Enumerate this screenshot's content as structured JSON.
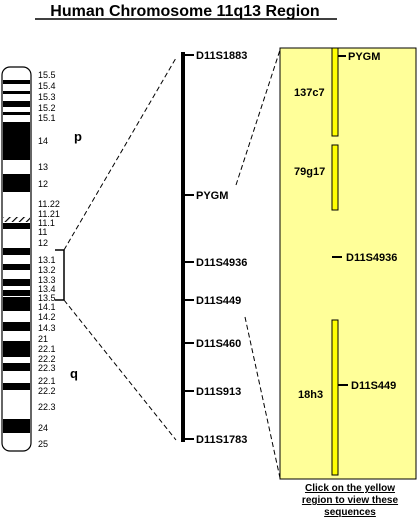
{
  "title": "Human Chromosome 11q13 Region",
  "arm_labels": {
    "p": "p",
    "q": "q"
  },
  "band_labels": [
    "15.5",
    "15.4",
    "15.3",
    "15.2",
    "15.1",
    "14",
    "13",
    "12",
    "11.22",
    "11.21",
    "11.1",
    "11",
    "12",
    "13.1",
    "13.2",
    "13.3",
    "13.4",
    "13.5",
    "14.1",
    "14.2",
    "14.3",
    "21",
    "22.1",
    "22.2",
    "22.3",
    "22.1",
    "22.2",
    "22.3",
    "24",
    "25"
  ],
  "markers": [
    "D11S1883",
    "PYGM",
    "D11S4936",
    "D11S449",
    "D11S460",
    "D11S913",
    "D11S1783"
  ],
  "region": {
    "fill_color": "#ffff99",
    "bar_color": "#ffff00",
    "clones": [
      "137c7",
      "79g17",
      "18h3"
    ],
    "markers": [
      "PYGM",
      "D11S4936",
      "D11S449"
    ]
  },
  "instruction": [
    "Click on the yellow",
    "region to view these",
    "sequences"
  ]
}
